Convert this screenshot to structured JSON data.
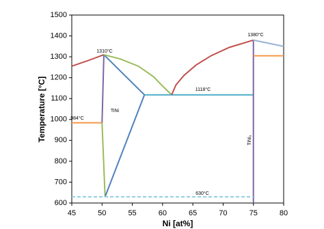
{
  "chart_data": {
    "type": "line",
    "xlabel": "Ni [at%]",
    "ylabel": "Temperature [°C]",
    "xlim": [
      45,
      80
    ],
    "xticks": [
      45,
      50,
      55,
      60,
      65,
      70,
      75,
      80
    ],
    "ylim": [
      600,
      1500
    ],
    "yticks": [
      600,
      700,
      800,
      900,
      1000,
      1100,
      1200,
      1300,
      1400,
      1500
    ],
    "series": [
      {
        "color": "#c0504d",
        "x": [
          45,
          47.5,
          50.3
        ],
        "values": [
          1255,
          1280,
          1310
        ]
      },
      {
        "color": "#8064a2",
        "x": [
          50.3,
          50
        ],
        "values": [
          1310,
          984
        ]
      },
      {
        "color": "#f79646",
        "x": [
          45,
          50
        ],
        "values": [
          984,
          984
        ]
      },
      {
        "color": "#9bbb59",
        "x": [
          50,
          50.5
        ],
        "values": [
          984,
          630
        ]
      },
      {
        "color": "#4f81bd",
        "x": [
          50.5,
          57
        ],
        "values": [
          630,
          1118
        ]
      },
      {
        "color": "#4f81bd",
        "x": [
          50.3,
          57
        ],
        "values": [
          1310,
          1118
        ]
      },
      {
        "color": "#9bbb59",
        "x": [
          50.3,
          53,
          56,
          58.5,
          60,
          61.5
        ],
        "values": [
          1310,
          1290,
          1255,
          1205,
          1160,
          1118
        ]
      },
      {
        "color": "#4bacc6",
        "x": [
          57,
          75
        ],
        "values": [
          1118,
          1118
        ]
      },
      {
        "color": "#c0504d",
        "x": [
          61.5,
          62.2,
          63.5,
          65.5,
          68,
          71,
          75
        ],
        "values": [
          1118,
          1165,
          1210,
          1260,
          1305,
          1345,
          1380
        ]
      },
      {
        "color": "#8064a2",
        "x": [
          75,
          75
        ],
        "values": [
          1380,
          600
        ]
      },
      {
        "color": "#95b3d7",
        "x": [
          75,
          80
        ],
        "values": [
          1380,
          1350
        ]
      },
      {
        "color": "#f79646",
        "x": [
          75,
          80
        ],
        "values": [
          1305,
          1305
        ]
      },
      {
        "color": "#93cddd",
        "dashed": true,
        "x": [
          45,
          75
        ],
        "values": [
          630,
          630
        ]
      }
    ],
    "annotations": [
      "1310°C",
      "984°C",
      "TiNi",
      "1118°C",
      "630°C",
      "1380°C",
      "TiNi₃"
    ]
  }
}
